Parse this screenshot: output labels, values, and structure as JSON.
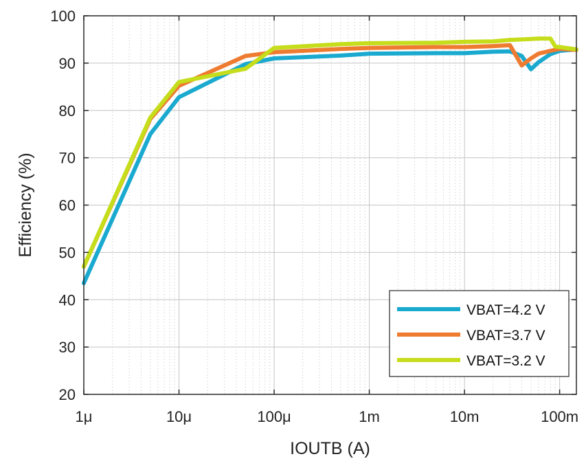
{
  "chart_data": {
    "type": "line",
    "xlabel": "IOUTB (A)",
    "ylabel": "Efficiency (%)",
    "x_scale": "log",
    "xlim": [
      1e-06,
      0.15
    ],
    "ylim": [
      20,
      100
    ],
    "grid": true,
    "legend_position": "bottom-right",
    "x_ticks": [
      {
        "value": 1e-06,
        "label": "1μ"
      },
      {
        "value": 1e-05,
        "label": "10μ"
      },
      {
        "value": 0.0001,
        "label": "100μ"
      },
      {
        "value": 0.001,
        "label": "1m"
      },
      {
        "value": 0.01,
        "label": "10m"
      },
      {
        "value": 0.1,
        "label": "100m"
      }
    ],
    "y_ticks": [
      {
        "value": 20,
        "label": "20"
      },
      {
        "value": 30,
        "label": "30"
      },
      {
        "value": 40,
        "label": "40"
      },
      {
        "value": 50,
        "label": "50"
      },
      {
        "value": 60,
        "label": "60"
      },
      {
        "value": 70,
        "label": "70"
      },
      {
        "value": 80,
        "label": "80"
      },
      {
        "value": 90,
        "label": "90"
      },
      {
        "value": 100,
        "label": "100"
      }
    ],
    "series": [
      {
        "name": "VBAT=4.2 V",
        "color": "#1aa9cf",
        "x": [
          1e-06,
          5e-06,
          1e-05,
          5e-05,
          0.0001,
          0.0005,
          0.001,
          0.005,
          0.01,
          0.02,
          0.03,
          0.04,
          0.05,
          0.06,
          0.08,
          0.1,
          0.15
        ],
        "y": [
          43.5,
          75,
          82.8,
          89.8,
          91,
          91.6,
          92,
          92.1,
          92.1,
          92.4,
          92.5,
          91.5,
          88.7,
          90.2,
          91.9,
          92.6,
          92.9
        ]
      },
      {
        "name": "VBAT=3.7 V",
        "color": "#ee7b30",
        "x": [
          1e-06,
          5e-06,
          1e-05,
          5e-05,
          0.0001,
          0.0005,
          0.001,
          0.005,
          0.01,
          0.02,
          0.03,
          0.04,
          0.05,
          0.06,
          0.08,
          0.1,
          0.15
        ],
        "y": [
          47,
          78.2,
          85.2,
          91.5,
          92.3,
          93,
          93.2,
          93.4,
          93.4,
          93.6,
          93.8,
          89.5,
          91,
          92,
          92.6,
          93,
          92.8
        ]
      },
      {
        "name": "VBAT=3.2 V",
        "color": "#c5dd1a",
        "x": [
          1e-06,
          5e-06,
          1e-05,
          5e-05,
          0.0001,
          0.0005,
          0.001,
          0.005,
          0.01,
          0.02,
          0.03,
          0.04,
          0.05,
          0.06,
          0.08,
          0.09,
          0.1,
          0.15
        ],
        "y": [
          47,
          78.5,
          86,
          88.8,
          93.2,
          94,
          94.2,
          94.3,
          94.5,
          94.6,
          94.9,
          95,
          95.1,
          95.2,
          95.2,
          93.5,
          93.4,
          92.9
        ]
      }
    ]
  }
}
